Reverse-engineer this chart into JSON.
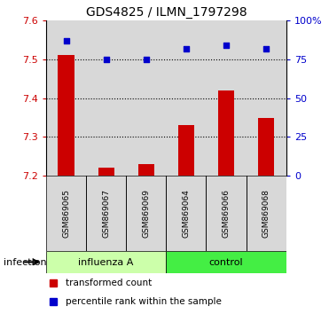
{
  "title": "GDS4825 / ILMN_1797298",
  "samples": [
    "GSM869065",
    "GSM869067",
    "GSM869069",
    "GSM869064",
    "GSM869066",
    "GSM869068"
  ],
  "factor_label": "infection",
  "red_values": [
    7.51,
    7.22,
    7.23,
    7.33,
    7.42,
    7.35
  ],
  "blue_values": [
    87,
    75,
    75,
    82,
    84,
    82
  ],
  "ylim_left": [
    7.2,
    7.6
  ],
  "ylim_right": [
    0,
    100
  ],
  "yticks_left": [
    7.2,
    7.3,
    7.4,
    7.5,
    7.6
  ],
  "yticks_right": [
    0,
    25,
    50,
    75,
    100
  ],
  "grid_lines": [
    7.3,
    7.4,
    7.5
  ],
  "bar_color": "#cc0000",
  "dot_color": "#0000cc",
  "bar_bottom": 7.2,
  "light_green": "#ccffaa",
  "dark_green": "#44ee44",
  "legend_red_label": "transformed count",
  "legend_blue_label": "percentile rank within the sample",
  "sample_bg": "#d8d8d8",
  "title_fontsize": 10,
  "tick_fontsize": 8,
  "sample_fontsize": 6.5,
  "group_fontsize": 8
}
